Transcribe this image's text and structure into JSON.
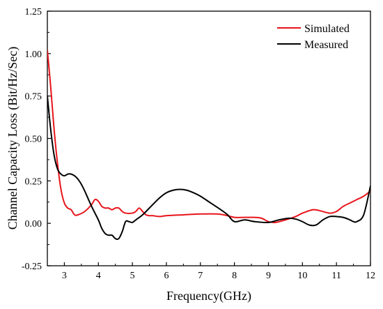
{
  "chart_data": {
    "type": "line",
    "title": "",
    "xlabel": "Frequency(GHz)",
    "ylabel": "Channel Capacity Loss (Bit/Hz/Sec)",
    "xlim": [
      2.5,
      12
    ],
    "ylim": [
      -0.25,
      1.25
    ],
    "xticks": [
      "3",
      "4",
      "5",
      "6",
      "7",
      "8",
      "9",
      "10",
      "11",
      "12"
    ],
    "yticks": [
      "-0.25",
      "0.00",
      "0.25",
      "0.50",
      "0.75",
      "1.00",
      "1.25"
    ],
    "grid": false,
    "legend_position": "top-right",
    "series": [
      {
        "name": "Simulated",
        "color": "#e8141a",
        "x": [
          2.5,
          2.6,
          2.7,
          2.8,
          2.9,
          3.0,
          3.1,
          3.2,
          3.3,
          3.4,
          3.6,
          3.8,
          3.9,
          4.0,
          4.1,
          4.2,
          4.3,
          4.4,
          4.5,
          4.6,
          4.7,
          4.8,
          5.0,
          5.1,
          5.2,
          5.3,
          5.4,
          5.5,
          5.6,
          5.8,
          6.0,
          6.5,
          7.0,
          7.5,
          7.8,
          8.0,
          8.3,
          8.6,
          8.8,
          9.0,
          9.2,
          9.5,
          9.8,
          10.0,
          10.3,
          10.5,
          10.8,
          11.0,
          11.2,
          11.4,
          11.6,
          11.8,
          12.0
        ],
        "y": [
          1.02,
          0.8,
          0.55,
          0.35,
          0.2,
          0.12,
          0.09,
          0.08,
          0.05,
          0.05,
          0.07,
          0.11,
          0.14,
          0.13,
          0.1,
          0.09,
          0.09,
          0.08,
          0.09,
          0.09,
          0.07,
          0.06,
          0.06,
          0.07,
          0.09,
          0.07,
          0.05,
          0.045,
          0.045,
          0.04,
          0.045,
          0.05,
          0.055,
          0.055,
          0.045,
          0.035,
          0.035,
          0.035,
          0.03,
          0.01,
          0.005,
          0.02,
          0.04,
          0.06,
          0.08,
          0.075,
          0.06,
          0.07,
          0.1,
          0.12,
          0.14,
          0.16,
          0.19
        ]
      },
      {
        "name": "Measured",
        "color": "#000000",
        "x": [
          2.5,
          2.6,
          2.7,
          2.8,
          2.9,
          3.0,
          3.1,
          3.2,
          3.3,
          3.4,
          3.5,
          3.6,
          3.8,
          4.0,
          4.1,
          4.2,
          4.3,
          4.4,
          4.5,
          4.6,
          4.7,
          4.8,
          4.9,
          5.0,
          5.1,
          5.3,
          5.5,
          5.8,
          6.0,
          6.2,
          6.4,
          6.6,
          6.8,
          7.0,
          7.3,
          7.6,
          7.8,
          8.0,
          8.3,
          8.6,
          9.0,
          9.3,
          9.6,
          9.8,
          10.0,
          10.2,
          10.4,
          10.6,
          10.8,
          11.0,
          11.2,
          11.4,
          11.5,
          11.6,
          11.8,
          12.0
        ],
        "y": [
          0.75,
          0.55,
          0.4,
          0.32,
          0.29,
          0.28,
          0.29,
          0.29,
          0.28,
          0.26,
          0.23,
          0.19,
          0.1,
          0.02,
          -0.03,
          -0.06,
          -0.07,
          -0.07,
          -0.09,
          -0.09,
          -0.05,
          0.01,
          0.01,
          0.005,
          0.02,
          0.05,
          0.09,
          0.15,
          0.18,
          0.195,
          0.2,
          0.195,
          0.18,
          0.16,
          0.12,
          0.08,
          0.05,
          0.01,
          0.02,
          0.01,
          0.005,
          0.02,
          0.03,
          0.025,
          0.01,
          -0.01,
          -0.01,
          0.02,
          0.04,
          0.04,
          0.035,
          0.02,
          0.01,
          0.01,
          0.05,
          0.22
        ]
      }
    ]
  }
}
